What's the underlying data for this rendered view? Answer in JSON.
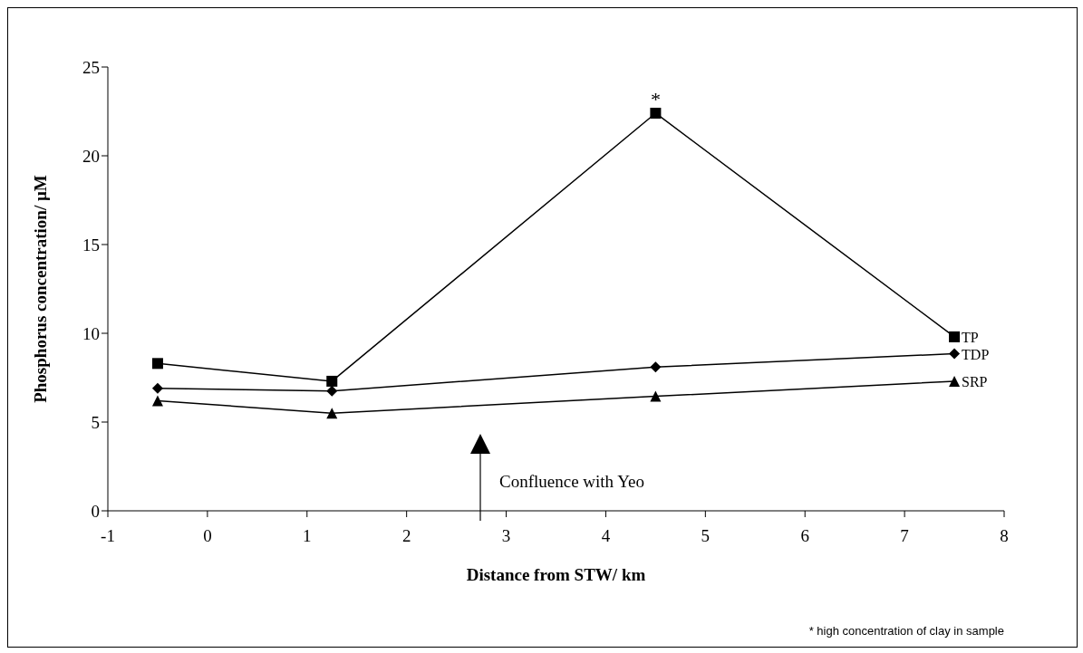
{
  "chart_data": {
    "type": "line",
    "xlabel": "Distance from STW/ km",
    "ylabel": "Phosphorus concentration/ µM",
    "x": [
      -0.5,
      1.25,
      4.5,
      7.5
    ],
    "series": [
      {
        "name": "TP",
        "color": "#000000",
        "marker": "square",
        "values": [
          8.3,
          7.3,
          22.4,
          9.8
        ]
      },
      {
        "name": "TDP",
        "color": "#000000",
        "marker": "diamond",
        "values": [
          6.9,
          6.75,
          8.1,
          8.85
        ]
      },
      {
        "name": "SRP",
        "color": "#000000",
        "marker": "triangle",
        "values": [
          6.2,
          5.5,
          6.45,
          7.3
        ]
      }
    ],
    "xlim": [
      -1,
      8
    ],
    "xticks": [
      -1,
      0,
      1,
      2,
      3,
      4,
      5,
      6,
      7,
      8
    ],
    "ylim": [
      0,
      25
    ],
    "yticks": [
      0,
      5,
      10,
      15,
      20,
      25
    ],
    "grid": false,
    "legend": false,
    "line_style": "solid",
    "annotations": [
      {
        "text": "*",
        "x": 4.5,
        "y": 22.4
      },
      "Confluence with Yeo",
      "* high concentration of clay in sample"
    ]
  }
}
